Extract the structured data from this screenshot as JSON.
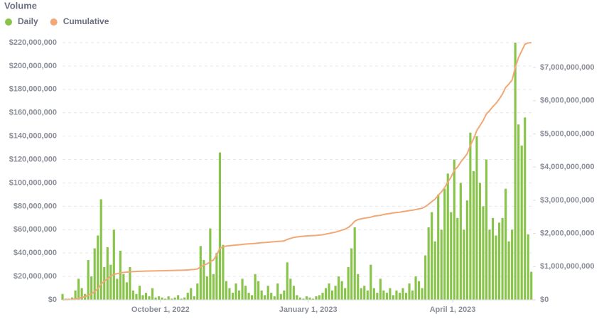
{
  "chart_data": {
    "type": "combo",
    "title": "Volume",
    "legend": "top-left",
    "grid": true,
    "xlim": [
      "2022-08-01",
      "2023-05-21"
    ],
    "xticks": [
      {
        "value": "2022-10-01",
        "label": "October 1, 2022"
      },
      {
        "value": "2023-01-01",
        "label": "January 1, 2023"
      },
      {
        "value": "2023-04-01",
        "label": "April 1, 2023"
      }
    ],
    "ylim": [
      0,
      220000000
    ],
    "yticks": [
      {
        "value": 0,
        "label": "$0"
      },
      {
        "value": 20000000,
        "label": "$20,000,000"
      },
      {
        "value": 40000000,
        "label": "$40,000,000"
      },
      {
        "value": 60000000,
        "label": "$60,000,000"
      },
      {
        "value": 80000000,
        "label": "$80,000,000"
      },
      {
        "value": 100000000,
        "label": "$100,000,000"
      },
      {
        "value": 120000000,
        "label": "$120,000,000"
      },
      {
        "value": 140000000,
        "label": "$140,000,000"
      },
      {
        "value": 160000000,
        "label": "$160,000,000"
      },
      {
        "value": 180000000,
        "label": "$180,000,000"
      },
      {
        "value": 200000000,
        "label": "$200,000,000"
      },
      {
        "value": 220000000,
        "label": "$220,000,000"
      }
    ],
    "y2lim": [
      0,
      7750000000
    ],
    "y2ticks": [
      {
        "value": 0,
        "label": "$0"
      },
      {
        "value": 1000000000,
        "label": "$1,000,000,000"
      },
      {
        "value": 2000000000,
        "label": "$2,000,000,000"
      },
      {
        "value": 3000000000,
        "label": "$3,000,000,000"
      },
      {
        "value": 4000000000,
        "label": "$4,000,000,000"
      },
      {
        "value": 5000000000,
        "label": "$5,000,000,000"
      },
      {
        "value": 6000000000,
        "label": "$6,000,000,000"
      },
      {
        "value": 7000000000,
        "label": "$7,000,000,000"
      }
    ],
    "x": [
      "2022-08-01",
      "2022-08-03",
      "2022-08-05",
      "2022-08-07",
      "2022-08-09",
      "2022-08-11",
      "2022-08-13",
      "2022-08-15",
      "2022-08-17",
      "2022-08-19",
      "2022-08-21",
      "2022-08-23",
      "2022-08-25",
      "2022-08-27",
      "2022-08-29",
      "2022-08-31",
      "2022-09-02",
      "2022-09-04",
      "2022-09-06",
      "2022-09-08",
      "2022-09-10",
      "2022-09-12",
      "2022-09-14",
      "2022-09-16",
      "2022-09-18",
      "2022-09-20",
      "2022-09-22",
      "2022-09-24",
      "2022-09-26",
      "2022-09-28",
      "2022-09-30",
      "2022-10-02",
      "2022-10-04",
      "2022-10-06",
      "2022-10-08",
      "2022-10-10",
      "2022-10-12",
      "2022-10-14",
      "2022-10-16",
      "2022-10-18",
      "2022-10-20",
      "2022-10-22",
      "2022-10-24",
      "2022-10-26",
      "2022-10-28",
      "2022-10-30",
      "2022-11-01",
      "2022-11-03",
      "2022-11-05",
      "2022-11-07",
      "2022-11-09",
      "2022-11-11",
      "2022-11-13",
      "2022-11-15",
      "2022-11-17",
      "2022-11-19",
      "2022-11-21",
      "2022-11-23",
      "2022-11-25",
      "2022-11-27",
      "2022-11-29",
      "2022-12-01",
      "2022-12-03",
      "2022-12-05",
      "2022-12-07",
      "2022-12-09",
      "2022-12-11",
      "2022-12-13",
      "2022-12-15",
      "2022-12-17",
      "2022-12-19",
      "2022-12-21",
      "2022-12-23",
      "2022-12-25",
      "2022-12-27",
      "2022-12-29",
      "2022-12-31",
      "2023-01-02",
      "2023-01-04",
      "2023-01-06",
      "2023-01-08",
      "2023-01-10",
      "2023-01-12",
      "2023-01-14",
      "2023-01-16",
      "2023-01-18",
      "2023-01-20",
      "2023-01-22",
      "2023-01-24",
      "2023-01-26",
      "2023-01-28",
      "2023-01-30",
      "2023-02-01",
      "2023-02-03",
      "2023-02-05",
      "2023-02-07",
      "2023-02-09",
      "2023-02-11",
      "2023-02-13",
      "2023-02-15",
      "2023-02-17",
      "2023-02-19",
      "2023-02-21",
      "2023-02-23",
      "2023-02-25",
      "2023-02-27",
      "2023-03-01",
      "2023-03-03",
      "2023-03-05",
      "2023-03-07",
      "2023-03-09",
      "2023-03-11",
      "2023-03-13",
      "2023-03-15",
      "2023-03-17",
      "2023-03-19",
      "2023-03-21",
      "2023-03-23",
      "2023-03-25",
      "2023-03-27",
      "2023-03-29",
      "2023-03-31",
      "2023-04-02",
      "2023-04-04",
      "2023-04-06",
      "2023-04-08",
      "2023-04-10",
      "2023-04-12",
      "2023-04-14",
      "2023-04-16",
      "2023-04-18",
      "2023-04-20",
      "2023-04-22",
      "2023-04-24",
      "2023-04-26",
      "2023-04-28",
      "2023-04-30",
      "2023-05-02",
      "2023-05-04",
      "2023-05-06",
      "2023-05-08",
      "2023-05-10",
      "2023-05-12",
      "2023-05-14",
      "2023-05-16",
      "2023-05-18",
      "2023-05-20"
    ],
    "series": [
      {
        "name": "Daily",
        "type": "bar",
        "color": "#88c34a",
        "values": [
          5000000.0,
          1000000.0,
          1000000.0,
          2000000.0,
          8000000.0,
          18000000.0,
          10000000.0,
          5000000.0,
          34000000.0,
          20000000.0,
          44000000.0,
          55000000.0,
          86000000.0,
          28000000.0,
          45000000.0,
          30000000.0,
          60000000.0,
          18000000.0,
          42000000.0,
          22000000.0,
          15000000.0,
          28000000.0,
          8000000.0,
          5000000.0,
          12000000.0,
          4000000.0,
          6000000.0,
          3000000.0,
          10000000.0,
          2000000.0,
          3000000.0,
          2000000.0,
          1000000.0,
          3000000.0,
          1000000.0,
          2000000.0,
          4000000.0,
          1000000.0,
          2000000.0,
          6000000.0,
          10000000.0,
          3000000.0,
          14000000.0,
          46000000.0,
          34000000.0,
          20000000.0,
          61000000.0,
          22000000.0,
          40000000.0,
          126000000.0,
          47000000.0,
          16000000.0,
          10000000.0,
          6000000.0,
          14000000.0,
          8000000.0,
          18000000.0,
          12000000.0,
          6000000.0,
          4000000.0,
          22000000.0,
          16000000.0,
          8000000.0,
          4000000.0,
          12000000.0,
          6000000.0,
          3000000.0,
          14000000.0,
          5000000.0,
          8000000.0,
          32000000.0,
          18000000.0,
          12000000.0,
          4000000.0,
          2000000.0,
          1000000.0,
          3000000.0,
          2000000.0,
          1000000.0,
          3000000.0,
          4000000.0,
          6000000.0,
          10000000.0,
          14000000.0,
          8000000.0,
          12000000.0,
          20000000.0,
          16000000.0,
          10000000.0,
          28000000.0,
          44000000.0,
          62000000.0,
          22000000.0,
          10000000.0,
          12000000.0,
          8000000.0,
          30000000.0,
          10000000.0,
          6000000.0,
          18000000.0,
          8000000.0,
          6000000.0,
          10000000.0,
          4000000.0,
          8000000.0,
          6000000.0,
          10000000.0,
          6000000.0,
          14000000.0,
          8000000.0,
          20000000.0,
          16000000.0,
          10000000.0,
          38000000.0,
          62000000.0,
          75000000.0,
          50000000.0,
          90000000.0,
          60000000.0,
          95000000.0,
          108000000.0,
          75000000.0,
          120000000.0,
          70000000.0,
          100000000.0,
          60000000.0,
          85000000.0,
          143000000.0,
          110000000.0,
          140000000.0,
          100000000.0,
          80000000.0,
          120000000.0,
          60000000.0,
          70000000.0,
          55000000.0,
          66000000.0,
          70000000.0,
          95000000.0,
          50000000.0,
          60000000.0,
          220000000.0,
          150000000.0,
          132000000.0,
          156000000.0,
          56000000.0,
          24000000.0
        ]
      },
      {
        "name": "Cumulative",
        "type": "line",
        "axis": "y2",
        "color": "#f0a875",
        "values": [
          0,
          5000000.0,
          8000000.0,
          12000000.0,
          25000000.0,
          50000000.0,
          75000000.0,
          90000000.0,
          140000000.0,
          180000000.0,
          250000000.0,
          340000000.0,
          470000000.0,
          560000000.0,
          640000000.0,
          720000000.0,
          760000000.0,
          790000000.0,
          810000000.0,
          825000000.0,
          835000000.0,
          845000000.0,
          850000000.0,
          855000000.0,
          860000000.0,
          863000000.0,
          866000000.0,
          868000000.0,
          870000000.0,
          873000000.0,
          875000000.0,
          876000000.0,
          878000000.0,
          880000000.0,
          882000000.0,
          885000000.0,
          888000000.0,
          890000000.0,
          895000000.0,
          900000000.0,
          910000000.0,
          915000000.0,
          930000000.0,
          990000000.0,
          1050000000.0,
          1080000000.0,
          1150000000.0,
          1200000000.0,
          1350000000.0,
          1550000000.0,
          1600000000.0,
          1620000000.0,
          1630000000.0,
          1640000000.0,
          1650000000.0,
          1660000000.0,
          1670000000.0,
          1680000000.0,
          1685000000.0,
          1690000000.0,
          1700000000.0,
          1710000000.0,
          1720000000.0,
          1725000000.0,
          1735000000.0,
          1745000000.0,
          1750000000.0,
          1760000000.0,
          1765000000.0,
          1775000000.0,
          1820000000.0,
          1850000000.0,
          1880000000.0,
          1895000000.0,
          1905000000.0,
          1915000000.0,
          1925000000.0,
          1930000000.0,
          1935000000.0,
          1940000000.0,
          1950000000.0,
          1960000000.0,
          1980000000.0,
          2000000000.0,
          2020000000.0,
          2040000000.0,
          2070000000.0,
          2100000000.0,
          2130000000.0,
          2180000000.0,
          2260000000.0,
          2370000000.0,
          2420000000.0,
          2440000000.0,
          2460000000.0,
          2475000000.0,
          2490000000.0,
          2520000000.0,
          2535000000.0,
          2545000000.0,
          2570000000.0,
          2590000000.0,
          2600000000.0,
          2620000000.0,
          2630000000.0,
          2640000000.0,
          2660000000.0,
          2670000000.0,
          2690000000.0,
          2700000000.0,
          2720000000.0,
          2740000000.0,
          2760000000.0,
          2810000000.0,
          2880000000.0,
          2960000000.0,
          3030000000.0,
          3150000000.0,
          3250000000.0,
          3380000000.0,
          3550000000.0,
          3700000000.0,
          3900000000.0,
          4000000000.0,
          4150000000.0,
          4270000000.0,
          4400000000.0,
          4650000000.0,
          4850000000.0,
          5100000000.0,
          5250000000.0,
          5400000000.0,
          5600000000.0,
          5700000000.0,
          5820000000.0,
          5920000000.0,
          6050000000.0,
          6200000000.0,
          6400000000.0,
          6500000000.0,
          6620000000.0,
          7000000000.0,
          7300000000.0,
          7500000000.0,
          7700000000.0,
          7740000000.0,
          7750000000.0
        ]
      }
    ]
  }
}
